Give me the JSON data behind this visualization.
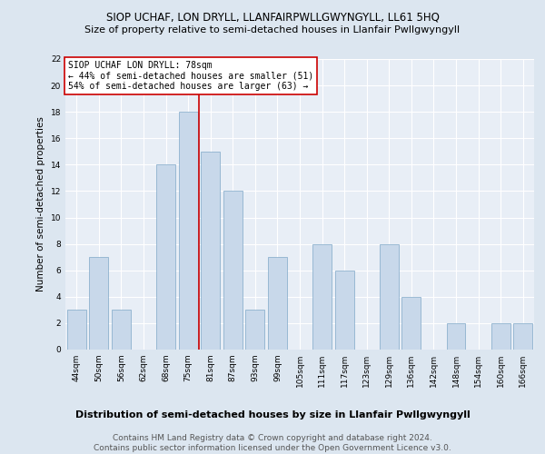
{
  "title": "SIOP UCHAF, LON DRYLL, LLANFAIRPWLLGWYNGYLL, LL61 5HQ",
  "subtitle": "Size of property relative to semi-detached houses in Llanfair Pwllgwyngyll",
  "xlabel": "Distribution of semi-detached houses by size in Llanfair Pwllgwyngyll",
  "ylabel": "Number of semi-detached properties",
  "footer": "Contains HM Land Registry data © Crown copyright and database right 2024.\nContains public sector information licensed under the Open Government Licence v3.0.",
  "categories": [
    "44sqm",
    "50sqm",
    "56sqm",
    "62sqm",
    "68sqm",
    "75sqm",
    "81sqm",
    "87sqm",
    "93sqm",
    "99sqm",
    "105sqm",
    "111sqm",
    "117sqm",
    "123sqm",
    "129sqm",
    "136sqm",
    "142sqm",
    "148sqm",
    "154sqm",
    "160sqm",
    "166sqm"
  ],
  "values": [
    3,
    7,
    3,
    0,
    14,
    18,
    15,
    12,
    3,
    7,
    0,
    8,
    6,
    0,
    8,
    4,
    0,
    2,
    0,
    2,
    2
  ],
  "bar_color": "#c8d8ea",
  "bar_edge_color": "#7fa8c8",
  "red_line_color": "#cc0000",
  "red_line_x": 5.5,
  "ylim": [
    0,
    22
  ],
  "yticks": [
    0,
    2,
    4,
    6,
    8,
    10,
    12,
    14,
    16,
    18,
    20,
    22
  ],
  "annotation_title": "SIOP UCHAF LON DRYLL: 78sqm",
  "annotation_line1": "← 44% of semi-detached houses are smaller (51)",
  "annotation_line2": "54% of semi-detached houses are larger (63) →",
  "annotation_box_facecolor": "#ffffff",
  "annotation_box_edgecolor": "#cc0000",
  "bg_color": "#dce6f0",
  "plot_bg_color": "#e8eef6",
  "grid_color": "#ffffff",
  "title_fontsize": 8.5,
  "subtitle_fontsize": 8,
  "axis_label_fontsize": 7.5,
  "tick_fontsize": 6.5,
  "annotation_fontsize": 7,
  "xlabel_fontsize": 8,
  "footer_fontsize": 6.5
}
